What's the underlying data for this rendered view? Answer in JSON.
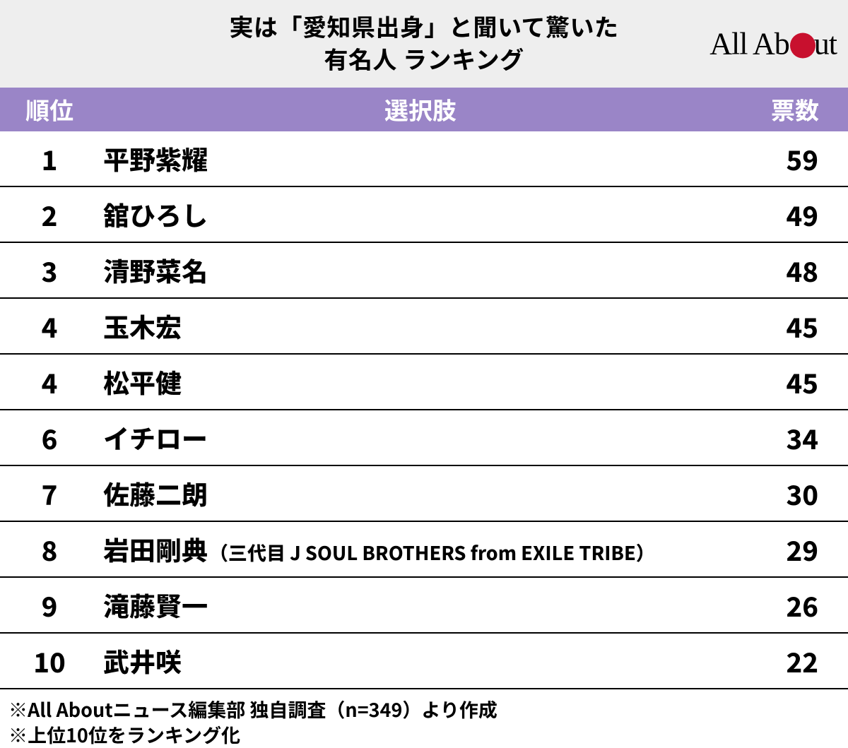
{
  "header": {
    "title_line1": "実は「愛知県出身」と聞いて驚いた",
    "title_line2": "有名人 ランキング",
    "logo_left": "All Ab",
    "logo_right": "ut",
    "logo_dot_color": "#c8102e"
  },
  "table": {
    "header_bg": "#9a85c7",
    "header_fg": "#ffffff",
    "row_border_color": "#000000",
    "columns": {
      "rank": "順位",
      "choice": "選択肢",
      "votes": "票数"
    },
    "rows": [
      {
        "rank": "1",
        "name": "平野紫耀",
        "note": "",
        "votes": "59"
      },
      {
        "rank": "2",
        "name": "舘ひろし",
        "note": "",
        "votes": "49"
      },
      {
        "rank": "3",
        "name": "清野菜名",
        "note": "",
        "votes": "48"
      },
      {
        "rank": "4",
        "name": "玉木宏",
        "note": "",
        "votes": "45"
      },
      {
        "rank": "4",
        "name": "松平健",
        "note": "",
        "votes": "45"
      },
      {
        "rank": "6",
        "name": "イチロー",
        "note": "",
        "votes": "34"
      },
      {
        "rank": "7",
        "name": "佐藤二朗",
        "note": "",
        "votes": "30"
      },
      {
        "rank": "8",
        "name": "岩田剛典",
        "note": "（三代目 J SOUL BROTHERS from EXILE TRIBE）",
        "votes": "29"
      },
      {
        "rank": "9",
        "name": "滝藤賢一",
        "note": "",
        "votes": "26"
      },
      {
        "rank": "10",
        "name": "武井咲",
        "note": "",
        "votes": "22"
      }
    ]
  },
  "footnotes": {
    "line1": "※All Aboutニュース編集部 独自調査（n=349）より作成",
    "line2": "※上位10位をランキング化"
  },
  "style": {
    "title_fontsize": 34,
    "header_fontsize": 34,
    "cell_fontsize": 38,
    "note_fontsize": 27,
    "footnote_fontsize": 27,
    "background_color": "#ffffff",
    "header_section_bg": "#eeeeee"
  }
}
